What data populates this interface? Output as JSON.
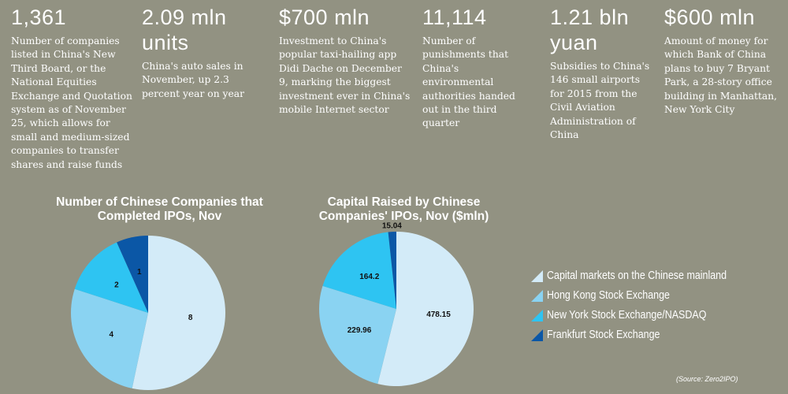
{
  "stats": [
    {
      "value": "1,361",
      "desc": "Number of companies listed in China's New Third Board, or the National Equities Exchange and Quotation system as of November 25, which allows for small and medium-sized companies to transfer shares and raise funds"
    },
    {
      "value": "2.09 mln units",
      "desc": "China's auto sales in November, up 2.3 percent year on year"
    },
    {
      "value": "$700 mln",
      "desc": "Investment to China's popular taxi-hailing app Didi Dache on December 9, marking the biggest investment ever in China's mobile Internet sector"
    },
    {
      "value": "11,114",
      "desc": "Number of punishments that China's environmental authorities handed out in the third quarter"
    },
    {
      "value": "1.21 bln yuan",
      "desc": "Subsidies to China's 146 small airports for 2015 from the Civil Aviation Administration of China"
    },
    {
      "value": "$600 mln",
      "desc": "Amount of money for which Bank of China plans to buy 7 Bryant Park, a 28-story office building in Manhattan, New York City"
    }
  ],
  "legend": [
    {
      "label": "Capital markets on the Chinese mainland",
      "color": "#d3ebf8"
    },
    {
      "label": "Hong Kong Stock Exchange",
      "color": "#8ad3f2"
    },
    {
      "label": "New York Stock Exchange/NASDAQ",
      "color": "#2ec4f2"
    },
    {
      "label": "Frankfurt Stock Exchange",
      "color": "#0b57a6"
    }
  ],
  "source": "(Source: Zero2IPO)",
  "chart_data": [
    {
      "type": "pie",
      "title": "Number of Chinese Companies that Completed IPOs, Nov",
      "categories": [
        "Capital markets on the Chinese mainland",
        "Hong Kong Stock Exchange",
        "New York Stock Exchange/NASDAQ",
        "Frankfurt Stock Exchange"
      ],
      "values": [
        8,
        4,
        2,
        1
      ],
      "labels": [
        "8",
        "4",
        "2",
        "1"
      ],
      "colors": [
        "#d3ebf8",
        "#8ad3f2",
        "#2ec4f2",
        "#0b57a6"
      ]
    },
    {
      "type": "pie",
      "title": "Capital Raised by Chinese Companies' IPOs, Nov ($mln)",
      "categories": [
        "Capital markets on the Chinese mainland",
        "Hong Kong Stock Exchange",
        "New York Stock Exchange/NASDAQ",
        "Frankfurt Stock Exchange"
      ],
      "values": [
        478.15,
        229.96,
        164.2,
        15.04
      ],
      "labels": [
        "478.15",
        "229.96",
        "164.2",
        "15.04"
      ],
      "colors": [
        "#d3ebf8",
        "#8ad3f2",
        "#2ec4f2",
        "#0b57a6"
      ]
    }
  ]
}
